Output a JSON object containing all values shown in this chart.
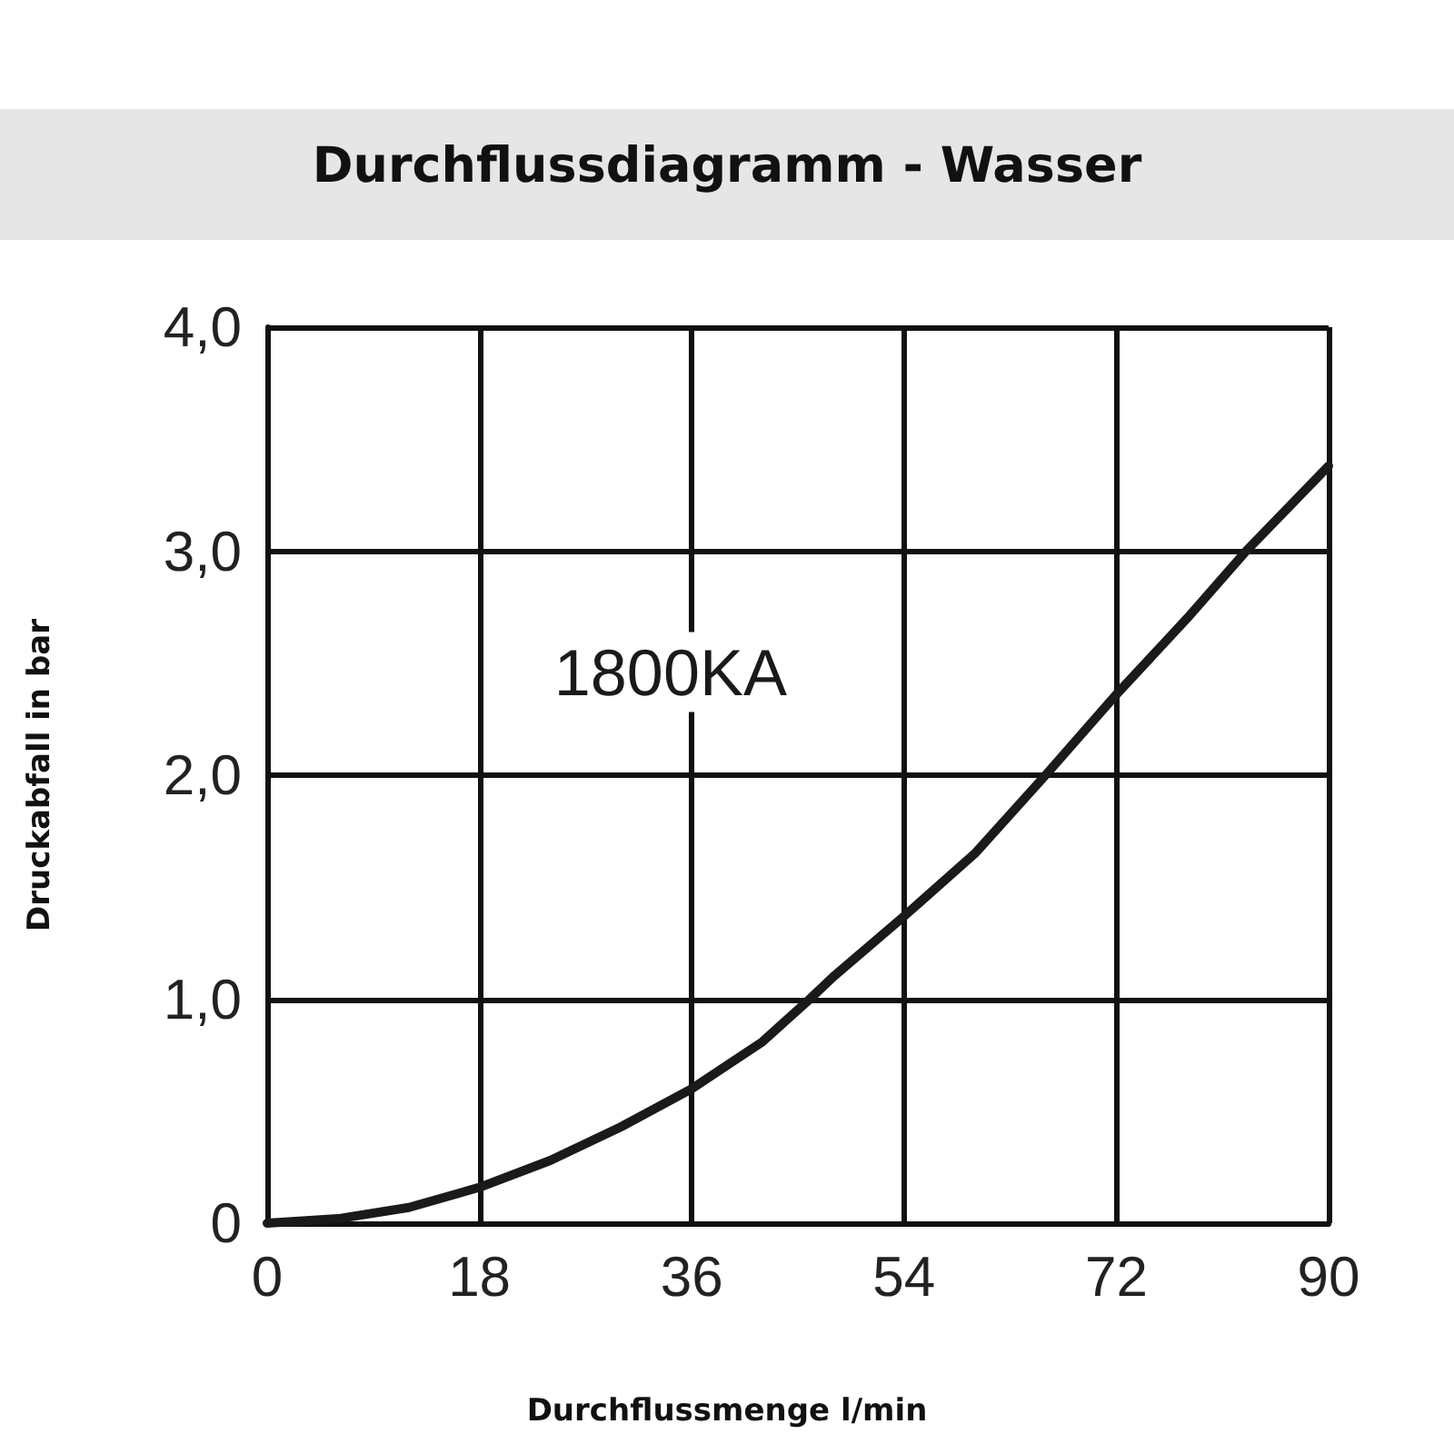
{
  "chart_data": {
    "type": "line",
    "title": "Durchflussdiagramm - Wasser",
    "xlabel": "Durchflussmenge l/min",
    "ylabel": "Druckabfall in bar",
    "x": [
      0,
      6,
      12,
      18,
      24,
      30,
      36,
      42,
      46,
      48,
      54,
      60,
      66,
      72,
      78,
      83,
      90
    ],
    "series": [
      {
        "name": "1800KA",
        "color": "#1a1a1a",
        "values": [
          0,
          0.02,
          0.07,
          0.16,
          0.28,
          0.43,
          0.6,
          0.81,
          1.0,
          1.1,
          1.37,
          1.65,
          2.0,
          2.36,
          2.7,
          3.0,
          3.38
        ]
      }
    ],
    "xlim": [
      0,
      90
    ],
    "xticks": [
      0,
      18,
      36,
      54,
      72,
      90
    ],
    "ylim": [
      0,
      4
    ],
    "yticks": [
      0,
      {
        "value": 1,
        "label": "1,0"
      },
      {
        "value": 2,
        "label": "2,0"
      },
      {
        "value": 3,
        "label": "3,0"
      },
      {
        "value": 4,
        "label": "4,0"
      }
    ],
    "grid": true
  }
}
